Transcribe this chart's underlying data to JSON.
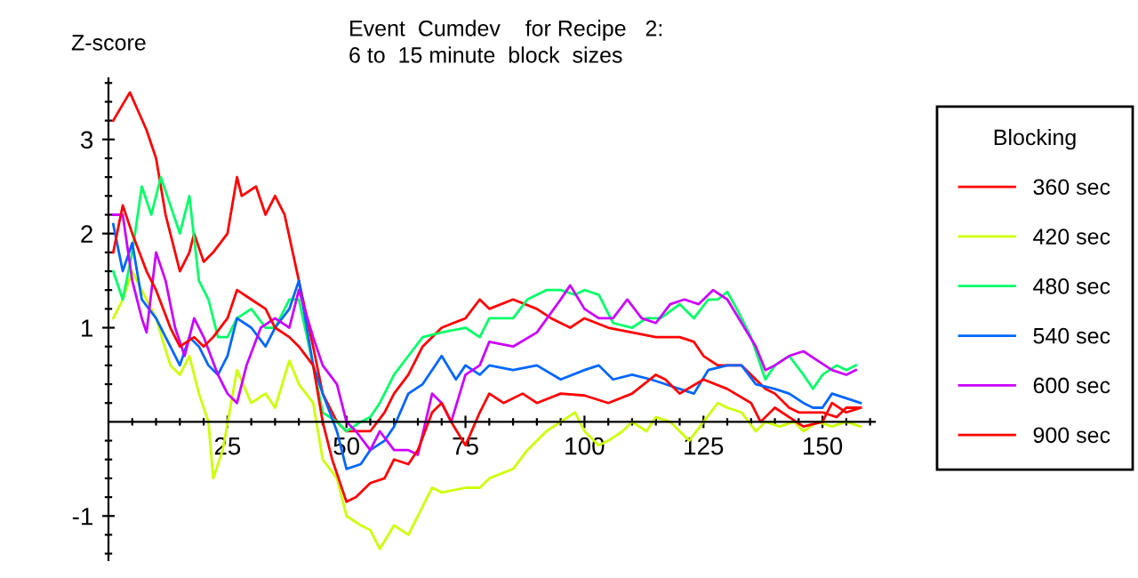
{
  "chart_data": {
    "type": "line",
    "title": "Event  Cumdev    for Recipe   2:",
    "subtitle": "6 to  15 minute  block  sizes",
    "ylabel": "Z-score",
    "legend_title": "Blocking",
    "legend": "right",
    "grid": false,
    "marker": "none",
    "line_style": "solid",
    "xlim": [
      0,
      161
    ],
    "ylim": [
      -1.47,
      3.65
    ],
    "xticks": [
      {
        "value": 5,
        "label": null
      },
      {
        "value": 10,
        "label": null
      },
      {
        "value": 15,
        "label": null
      },
      {
        "value": 20,
        "label": null
      },
      25,
      {
        "value": 30,
        "label": null
      },
      {
        "value": 35,
        "label": null
      },
      {
        "value": 40,
        "label": null
      },
      {
        "value": 45,
        "label": null
      },
      50,
      {
        "value": 55,
        "label": null
      },
      {
        "value": 60,
        "label": null
      },
      {
        "value": 65,
        "label": null
      },
      {
        "value": 70,
        "label": null
      },
      75,
      {
        "value": 80,
        "label": null
      },
      {
        "value": 85,
        "label": null
      },
      {
        "value": 90,
        "label": null
      },
      {
        "value": 95,
        "label": null
      },
      100,
      {
        "value": 105,
        "label": null
      },
      {
        "value": 110,
        "label": null
      },
      {
        "value": 115,
        "label": null
      },
      {
        "value": 120,
        "label": null
      },
      125,
      {
        "value": 130,
        "label": null
      },
      {
        "value": 135,
        "label": null
      },
      {
        "value": 140,
        "label": null
      },
      {
        "value": 145,
        "label": null
      },
      150,
      {
        "value": 155,
        "label": null
      },
      {
        "value": 160,
        "label": null
      }
    ],
    "yticks": [
      {
        "value": -1.4,
        "label": null
      },
      {
        "value": -1.2,
        "label": null
      },
      -1,
      {
        "value": -0.8,
        "label": null
      },
      {
        "value": -0.6,
        "label": null
      },
      {
        "value": -0.4,
        "label": null
      },
      {
        "value": -0.2,
        "label": null
      },
      {
        "value": 0.2,
        "label": null
      },
      {
        "value": 0.4,
        "label": null
      },
      {
        "value": 0.6,
        "label": null
      },
      {
        "value": 0.8,
        "label": null
      },
      1,
      {
        "value": 1.2,
        "label": null
      },
      {
        "value": 1.4,
        "label": null
      },
      {
        "value": 1.6,
        "label": null
      },
      {
        "value": 1.8,
        "label": null
      },
      2,
      {
        "value": 2.2,
        "label": null
      },
      {
        "value": 2.4,
        "label": null
      },
      {
        "value": 2.6,
        "label": null
      },
      {
        "value": 2.8,
        "label": null
      },
      3,
      {
        "value": 3.2,
        "label": null
      },
      {
        "value": 3.4,
        "label": null
      },
      {
        "value": 3.6,
        "label": null
      }
    ],
    "series": [
      {
        "name": "360 sec",
        "color": "#ff0000",
        "x": [
          1,
          4.5,
          8,
          10,
          12,
          15,
          17,
          18,
          20,
          22,
          25,
          27,
          28,
          31,
          33,
          35,
          37,
          40,
          43,
          45,
          48,
          50,
          53,
          55,
          58,
          60,
          63,
          66,
          70,
          75,
          78,
          80,
          85,
          90,
          93,
          97,
          100,
          105,
          110,
          115,
          120,
          123,
          125,
          128,
          130,
          133,
          135,
          138,
          140,
          143,
          145,
          148,
          150,
          153,
          155,
          158
        ],
        "values": [
          3.2,
          3.5,
          3.1,
          2.8,
          2.2,
          1.6,
          1.8,
          2.0,
          1.7,
          1.8,
          2.0,
          2.6,
          2.4,
          2.5,
          2.2,
          2.4,
          2.2,
          1.5,
          0.8,
          0.3,
          0.0,
          -0.1,
          -0.1,
          -0.1,
          0.1,
          0.3,
          0.5,
          0.8,
          1.0,
          1.1,
          1.3,
          1.2,
          1.3,
          1.2,
          1.1,
          1.0,
          1.1,
          1.0,
          0.95,
          0.9,
          0.9,
          0.85,
          0.7,
          0.6,
          0.6,
          0.6,
          0.5,
          0.35,
          0.3,
          0.15,
          0.1,
          0.1,
          0.1,
          0.05,
          0.15,
          0.15
        ]
      },
      {
        "name": "420 sec",
        "color": "#ccff00",
        "x": [
          1,
          3,
          5,
          8,
          10,
          13,
          15,
          17,
          19,
          21,
          22,
          24,
          27,
          30,
          33,
          35,
          38,
          40,
          43,
          45,
          48,
          50,
          53,
          55,
          57,
          60,
          63,
          65,
          68,
          70,
          75,
          78,
          80,
          85,
          88,
          92,
          95,
          98,
          100,
          103,
          105,
          108,
          110,
          113,
          115,
          118,
          120,
          122,
          125,
          128,
          130,
          133,
          136,
          138,
          141,
          144,
          146,
          149,
          152,
          155,
          158
        ],
        "values": [
          1.1,
          1.3,
          1.6,
          1.3,
          1.1,
          0.6,
          0.5,
          0.7,
          0.3,
          0.0,
          -0.6,
          -0.3,
          0.55,
          0.2,
          0.3,
          0.15,
          0.65,
          0.4,
          0.2,
          -0.4,
          -0.6,
          -1.0,
          -1.1,
          -1.15,
          -1.35,
          -1.1,
          -1.2,
          -1.0,
          -0.7,
          -0.75,
          -0.7,
          -0.7,
          -0.6,
          -0.5,
          -0.3,
          -0.1,
          0.0,
          0.1,
          -0.1,
          -0.25,
          -0.2,
          -0.1,
          0.0,
          -0.1,
          0.05,
          0.0,
          -0.1,
          -0.2,
          0.0,
          0.2,
          0.15,
          0.1,
          -0.1,
          0.0,
          -0.05,
          0.0,
          -0.1,
          0.0,
          -0.05,
          0.0,
          -0.05
        ]
      },
      {
        "name": "480 sec",
        "color": "#00ff66",
        "x": [
          1,
          3,
          5,
          7,
          9,
          11,
          13,
          15,
          17,
          19,
          21,
          23,
          25,
          27,
          30,
          33,
          35,
          38,
          40,
          43,
          45,
          48,
          50,
          53,
          55,
          57,
          60,
          63,
          66,
          70,
          75,
          78,
          80,
          85,
          88,
          92,
          95,
          98,
          100,
          103,
          106,
          110,
          113,
          116,
          120,
          123,
          126,
          128,
          130,
          132,
          135,
          138,
          140,
          143,
          146,
          148,
          150,
          153,
          155,
          157
        ],
        "values": [
          1.6,
          1.3,
          1.8,
          2.5,
          2.2,
          2.6,
          2.3,
          2.0,
          2.4,
          1.5,
          1.3,
          0.9,
          0.9,
          1.1,
          1.2,
          1.0,
          1.0,
          1.3,
          1.3,
          0.6,
          0.1,
          0.0,
          -0.1,
          0.0,
          0.05,
          0.2,
          0.5,
          0.7,
          0.9,
          0.95,
          1.0,
          0.9,
          1.1,
          1.1,
          1.3,
          1.4,
          1.4,
          1.35,
          1.4,
          1.35,
          1.05,
          1.0,
          1.1,
          1.1,
          1.25,
          1.1,
          1.3,
          1.3,
          1.38,
          1.2,
          0.9,
          0.45,
          0.6,
          0.7,
          0.5,
          0.35,
          0.5,
          0.6,
          0.55,
          0.6
        ]
      },
      {
        "name": "540 sec",
        "color": "#0066ff",
        "x": [
          1,
          3,
          5,
          7,
          10,
          13,
          15,
          17,
          19,
          21,
          23,
          25,
          27,
          30,
          33,
          35,
          38,
          40,
          43,
          45,
          48,
          50,
          53,
          55,
          58,
          60,
          63,
          66,
          70,
          73,
          75,
          78,
          80,
          85,
          90,
          95,
          100,
          103,
          106,
          110,
          114,
          117,
          120,
          123,
          126,
          130,
          133,
          136,
          140,
          143,
          146,
          148,
          150,
          152,
          155,
          158
        ],
        "values": [
          2.1,
          1.6,
          1.9,
          1.3,
          1.1,
          0.8,
          0.6,
          0.9,
          0.8,
          0.6,
          0.5,
          0.7,
          1.1,
          1.0,
          0.8,
          1.0,
          1.2,
          1.5,
          0.6,
          0.3,
          -0.1,
          -0.5,
          -0.45,
          -0.3,
          -0.2,
          -0.05,
          0.3,
          0.4,
          0.7,
          0.45,
          0.6,
          0.5,
          0.6,
          0.55,
          0.6,
          0.45,
          0.55,
          0.6,
          0.45,
          0.5,
          0.45,
          0.4,
          0.35,
          0.3,
          0.55,
          0.6,
          0.6,
          0.4,
          0.35,
          0.3,
          0.2,
          0.15,
          0.15,
          0.3,
          0.25,
          0.2
        ]
      },
      {
        "name": "600 sec",
        "color": "#cc00ff",
        "x": [
          1,
          3,
          5,
          7,
          8,
          10,
          12,
          14,
          16,
          18,
          20,
          23,
          25,
          27,
          29,
          32,
          35,
          38,
          40,
          43,
          45,
          48,
          50,
          52,
          55,
          57,
          60,
          63,
          65,
          68,
          70,
          72,
          75,
          78,
          80,
          85,
          90,
          95,
          97,
          100,
          103,
          106,
          109,
          112,
          115,
          118,
          121,
          124,
          127,
          130,
          133,
          136,
          138,
          140,
          143,
          146,
          149,
          152,
          155,
          157
        ],
        "values": [
          2.2,
          2.2,
          1.5,
          1.1,
          0.95,
          1.8,
          1.5,
          1.0,
          0.7,
          1.1,
          0.9,
          0.5,
          0.3,
          0.2,
          0.6,
          1.0,
          1.1,
          1.0,
          1.4,
          0.9,
          0.6,
          0.4,
          0.0,
          -0.1,
          -0.3,
          -0.1,
          -0.3,
          -0.3,
          -0.35,
          0.3,
          0.2,
          0.0,
          0.5,
          0.6,
          0.85,
          0.8,
          0.95,
          1.3,
          1.45,
          1.2,
          1.1,
          1.1,
          1.3,
          1.1,
          1.05,
          1.25,
          1.3,
          1.25,
          1.4,
          1.3,
          1.05,
          0.8,
          0.55,
          0.6,
          0.7,
          0.75,
          0.65,
          0.55,
          0.5,
          0.55
        ]
      },
      {
        "name": "900 sec",
        "color": "#ff0000",
        "x": [
          1,
          3,
          5,
          8,
          10,
          13,
          15,
          18,
          20,
          22,
          25,
          27,
          30,
          33,
          35,
          38,
          40,
          43,
          45,
          47,
          50,
          52,
          55,
          58,
          60,
          63,
          65,
          68,
          70,
          72,
          75,
          78,
          80,
          83,
          87,
          90,
          95,
          100,
          105,
          110,
          115,
          117,
          120,
          125,
          130,
          135,
          137,
          140,
          143,
          146,
          150,
          152,
          155,
          158
        ],
        "values": [
          1.8,
          2.3,
          2.0,
          1.6,
          1.4,
          1.0,
          0.8,
          0.9,
          0.8,
          0.9,
          1.1,
          1.4,
          1.3,
          1.2,
          1.0,
          0.9,
          0.8,
          0.6,
          0.0,
          -0.4,
          -0.85,
          -0.8,
          -0.65,
          -0.6,
          -0.4,
          -0.45,
          -0.3,
          0.1,
          0.2,
          0.0,
          -0.25,
          0.1,
          0.3,
          0.2,
          0.3,
          0.2,
          0.3,
          0.28,
          0.2,
          0.3,
          0.5,
          0.45,
          0.3,
          0.45,
          0.35,
          0.2,
          0.0,
          0.15,
          0.05,
          -0.05,
          0.0,
          0.2,
          0.1,
          0.15
        ]
      }
    ]
  }
}
